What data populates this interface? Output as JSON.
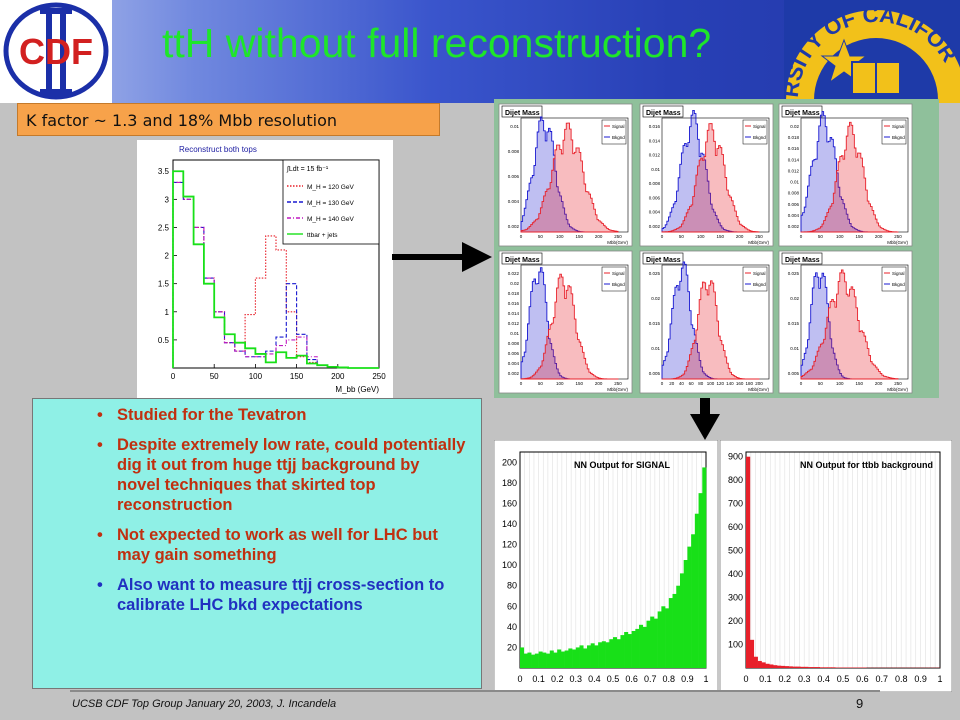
{
  "slide": {
    "title": "ttH without full reconstruction?",
    "kfactor_note": "K factor ~ 1.3  and 18% Mbb resolution",
    "page_number": "9",
    "footer": "UCSB CDF Top Group January 20, 2003, J. Incandela"
  },
  "logos": {
    "cdf_text": "CDF",
    "university_text": "RSITY OF CALIFOR"
  },
  "bullets": [
    {
      "text": "Studied for the Tevatron",
      "color": "#c03010"
    },
    {
      "text": "Despite extremely low rate, could potentially dig it out from huge ttjj background by novel techniques that skirted top reconstruction",
      "color": "#c03010"
    },
    {
      "text": "Not expected to work as well for LHC but may gain something",
      "color": "#c03010"
    },
    {
      "text": "Also want to measure ttjj cross-section to calibrate LHC bkd expectations",
      "color": "#2030c0"
    }
  ],
  "colors": {
    "signal": "#e8202a",
    "background": "#1818d0",
    "green_hist": "#18e018",
    "title": "#1ee62a"
  },
  "chart_data": [
    {
      "type": "bar",
      "title": "Reconstruct both tops",
      "luminosity_label": "∫Ldt = 15 fb⁻¹",
      "xlabel": "M_bb (GeV)",
      "ylabel": "",
      "xlim": [
        0,
        250
      ],
      "ylim": [
        0,
        3.7
      ],
      "x_ticks": [
        0,
        50,
        100,
        150,
        200,
        250
      ],
      "y_ticks": [
        0.5,
        1,
        1.5,
        2,
        2.5,
        3,
        3.5
      ],
      "bin_edges": [
        0,
        12.5,
        25,
        37.5,
        50,
        62.5,
        75,
        87.5,
        100,
        112.5,
        125,
        137.5,
        150,
        162.5,
        175,
        187.5,
        200,
        212.5,
        225,
        237.5,
        250
      ],
      "series": [
        {
          "name": "M_H = 120 GeV",
          "color": "#e8202a",
          "style": "dotted",
          "values": [
            3.3,
            3.0,
            2.5,
            1.6,
            1.0,
            0.45,
            0.3,
            0.95,
            1.6,
            2.35,
            2.1,
            1.0,
            0.2,
            0.1,
            0.05,
            0.02,
            0.01,
            0,
            0,
            0
          ]
        },
        {
          "name": "M_H = 130 GeV",
          "color": "#1818d0",
          "style": "dashed",
          "values": [
            3.3,
            3.0,
            2.5,
            1.6,
            1.0,
            0.45,
            0.3,
            0.2,
            0.2,
            0.3,
            0.55,
            1.5,
            0.6,
            0.15,
            0.05,
            0.02,
            0.01,
            0,
            0,
            0
          ]
        },
        {
          "name": "M_H = 140 GeV",
          "color": "#c018c0",
          "style": "dashdot",
          "values": [
            3.3,
            3.0,
            2.5,
            1.6,
            1.0,
            0.45,
            0.3,
            0.2,
            0.2,
            0.25,
            0.4,
            0.5,
            0.55,
            0.2,
            0.05,
            0.02,
            0.01,
            0,
            0,
            0
          ]
        },
        {
          "name": "ttbar + jets",
          "color": "#18e018",
          "style": "solid",
          "values": [
            3.5,
            3.05,
            2.2,
            1.5,
            0.9,
            0.6,
            0.45,
            0.35,
            0.25,
            0.1,
            0.28,
            0.18,
            0.22,
            0.08,
            0.05,
            0.02,
            0.01,
            0,
            0,
            0
          ]
        }
      ]
    },
    {
      "type": "area",
      "title": "Dijet Mass (6 panels)",
      "xlabel": "Mbb(GeV)",
      "legend": [
        "Signal",
        "Bkgnd"
      ],
      "panels": [
        {
          "title": "Dijet Mass",
          "y_ticks": [
            "0.01",
            "0.008",
            "0.006",
            "0.004",
            "0.002"
          ],
          "x_ticks": [
            "0",
            "50",
            "100",
            "150",
            "200",
            "250"
          ],
          "bkg_peak": 60,
          "bkg_width": 28,
          "sig_peak": 120,
          "sig_width": 40
        },
        {
          "title": "Dijet Mass",
          "y_ticks": [
            "0.016",
            "0.014",
            "0.012",
            "0.01",
            "0.008",
            "0.006",
            "0.004",
            "0.002"
          ],
          "x_ticks": [
            "0",
            "50",
            "100",
            "150",
            "200",
            "250"
          ],
          "bkg_peak": 80,
          "bkg_width": 30,
          "sig_peak": 128,
          "sig_width": 34
        },
        {
          "title": "Dijet Mass",
          "y_ticks": [
            "0.02",
            "0.018",
            "0.016",
            "0.014",
            "0.012",
            "0.01",
            "0.008",
            "0.006",
            "0.004",
            "0.002"
          ],
          "x_ticks": [
            "0",
            "50",
            "100",
            "150",
            "200",
            "250"
          ],
          "bkg_peak": 60,
          "bkg_width": 30,
          "sig_peak": 128,
          "sig_width": 32
        },
        {
          "title": "Dijet Mass",
          "y_ticks": [
            "0.022",
            "0.02",
            "0.018",
            "0.016",
            "0.014",
            "0.012",
            "0.01",
            "0.008",
            "0.006",
            "0.004",
            "0.002"
          ],
          "x_ticks": [
            "0",
            "50",
            "100",
            "150",
            "200",
            "250"
          ],
          "bkg_peak": 45,
          "bkg_width": 22,
          "sig_peak": 110,
          "sig_width": 30
        },
        {
          "title": "Dijet Mass",
          "y_ticks": [
            "0.025",
            "0.02",
            "0.015",
            "0.01",
            "0.005"
          ],
          "x_ticks": [
            "0",
            "20",
            "40",
            "60",
            "80",
            "100",
            "120",
            "140",
            "160",
            "180",
            "200"
          ],
          "bkg_peak": 52,
          "bkg_width": 24,
          "sig_peak": 118,
          "sig_width": 26
        },
        {
          "title": "Dijet Mass",
          "y_ticks": [
            "0.025",
            "0.02",
            "0.015",
            "0.01",
            "0.005"
          ],
          "x_ticks": [
            "0",
            "50",
            "100",
            "150",
            "200",
            "250"
          ],
          "bkg_peak": 48,
          "bkg_width": 22,
          "sig_peak": 110,
          "sig_width": 40
        }
      ]
    },
    {
      "type": "bar",
      "title": "NN Output for SIGNAL",
      "xlim": [
        0,
        1
      ],
      "ylim": [
        0,
        210
      ],
      "y_ticks": [
        20,
        40,
        60,
        80,
        100,
        120,
        140,
        160,
        180,
        200
      ],
      "x_ticks": [
        "0",
        "0.1",
        "0.2",
        "0.3",
        "0.4",
        "0.5",
        "0.6",
        "0.7",
        "0.8",
        "0.9",
        "1"
      ],
      "series": [
        {
          "name": "SIGNAL",
          "color": "#18e018",
          "values": [
            20,
            14,
            15,
            13,
            14,
            16,
            15,
            14,
            17,
            15,
            18,
            16,
            17,
            19,
            18,
            20,
            22,
            19,
            22,
            24,
            22,
            25,
            26,
            25,
            28,
            30,
            28,
            32,
            35,
            33,
            36,
            38,
            42,
            40,
            46,
            50,
            48,
            55,
            60,
            58,
            68,
            72,
            80,
            92,
            105,
            118,
            130,
            150,
            170,
            195
          ]
        }
      ]
    },
    {
      "type": "bar",
      "title": "NN Output for ttbb background",
      "xlim": [
        0,
        1
      ],
      "ylim": [
        0,
        920
      ],
      "y_ticks": [
        100,
        200,
        300,
        400,
        500,
        600,
        700,
        800,
        900
      ],
      "x_ticks": [
        "0",
        "0.1",
        "0.2",
        "0.3",
        "0.4",
        "0.5",
        "0.6",
        "0.7",
        "0.8",
        "0.9",
        "1"
      ],
      "series": [
        {
          "name": "ttbb background",
          "color": "#e8202a",
          "values": [
            900,
            120,
            48,
            30,
            24,
            18,
            15,
            12,
            10,
            9,
            8,
            7,
            6,
            6,
            5,
            5,
            4,
            4,
            4,
            3,
            3,
            3,
            3,
            2,
            2,
            2,
            2,
            2,
            2,
            2,
            2,
            1,
            1,
            1,
            1,
            1,
            1,
            1,
            1,
            1,
            1,
            1,
            1,
            1,
            1,
            1,
            1,
            1,
            1,
            1
          ]
        }
      ]
    }
  ]
}
